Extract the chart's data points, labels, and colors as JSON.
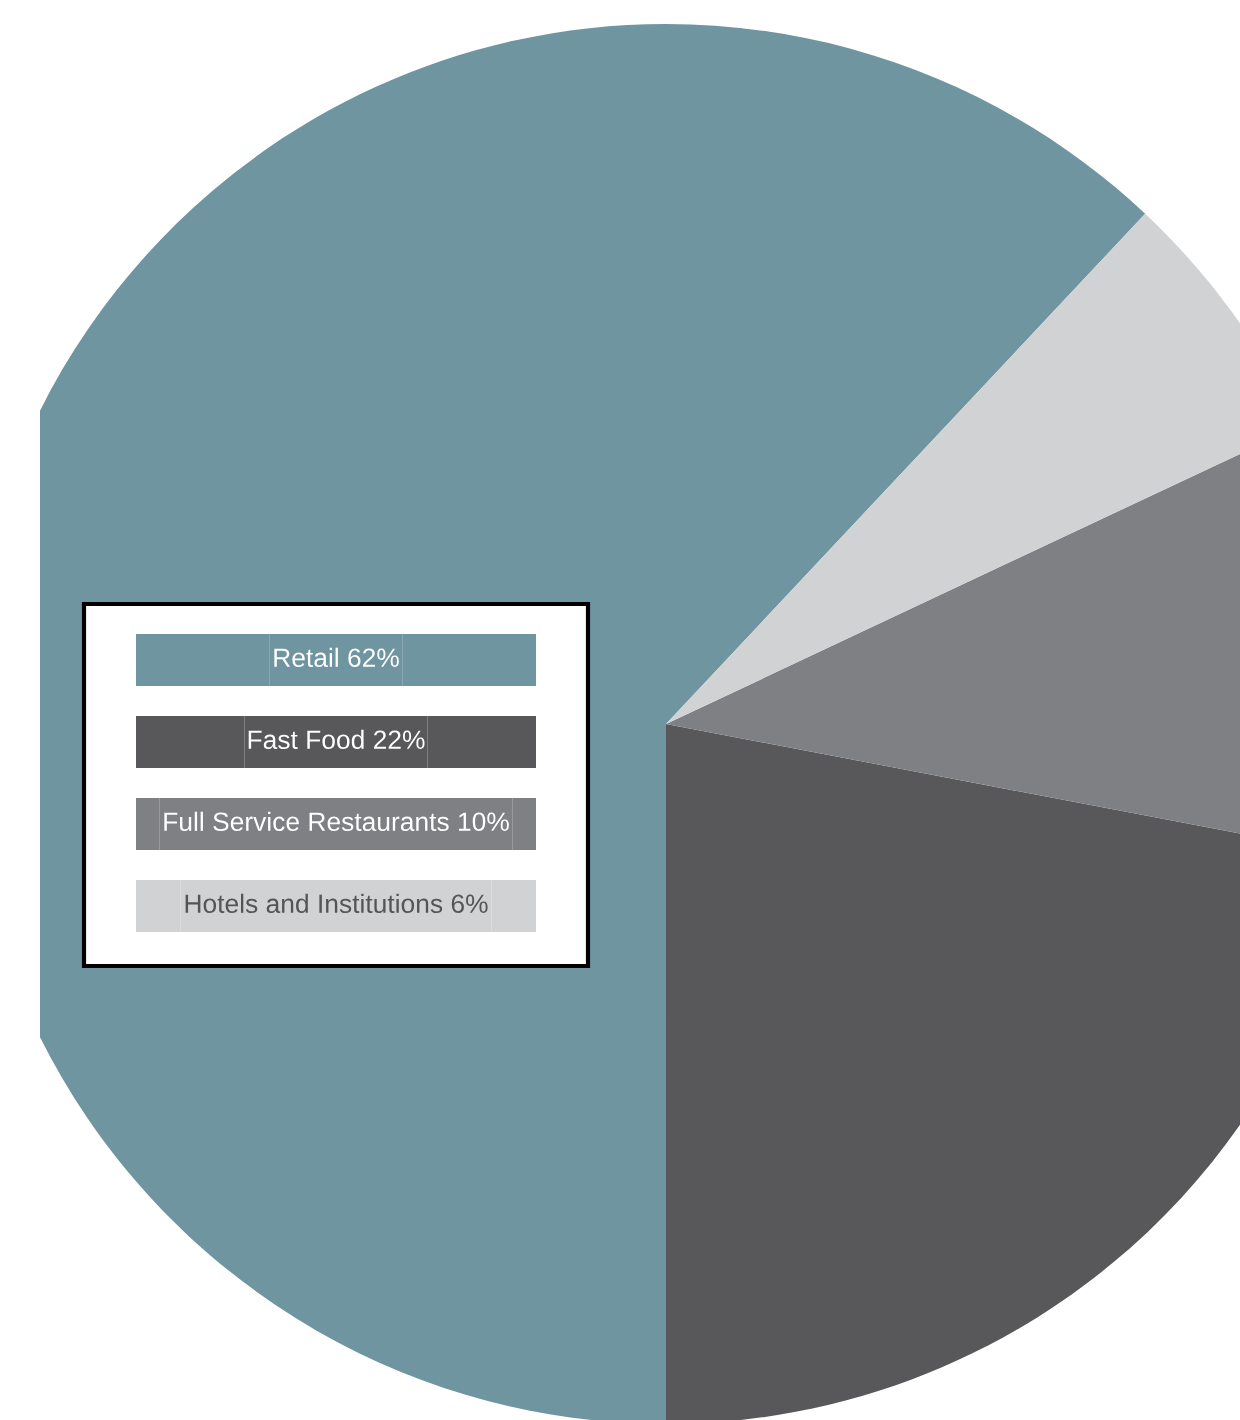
{
  "chart_data": {
    "type": "pie",
    "categories": [
      "Retail",
      "Fast Food",
      "Full Service Restaurants",
      "Hotels and Institutions"
    ],
    "values": [
      62,
      22,
      10,
      6
    ],
    "value_labels": [
      "62%",
      "22%",
      "10%",
      "6%"
    ],
    "colors": [
      "#6f95a0",
      "#58585a",
      "#7f8083",
      "#d1d2d4"
    ],
    "legend": "left"
  }
}
